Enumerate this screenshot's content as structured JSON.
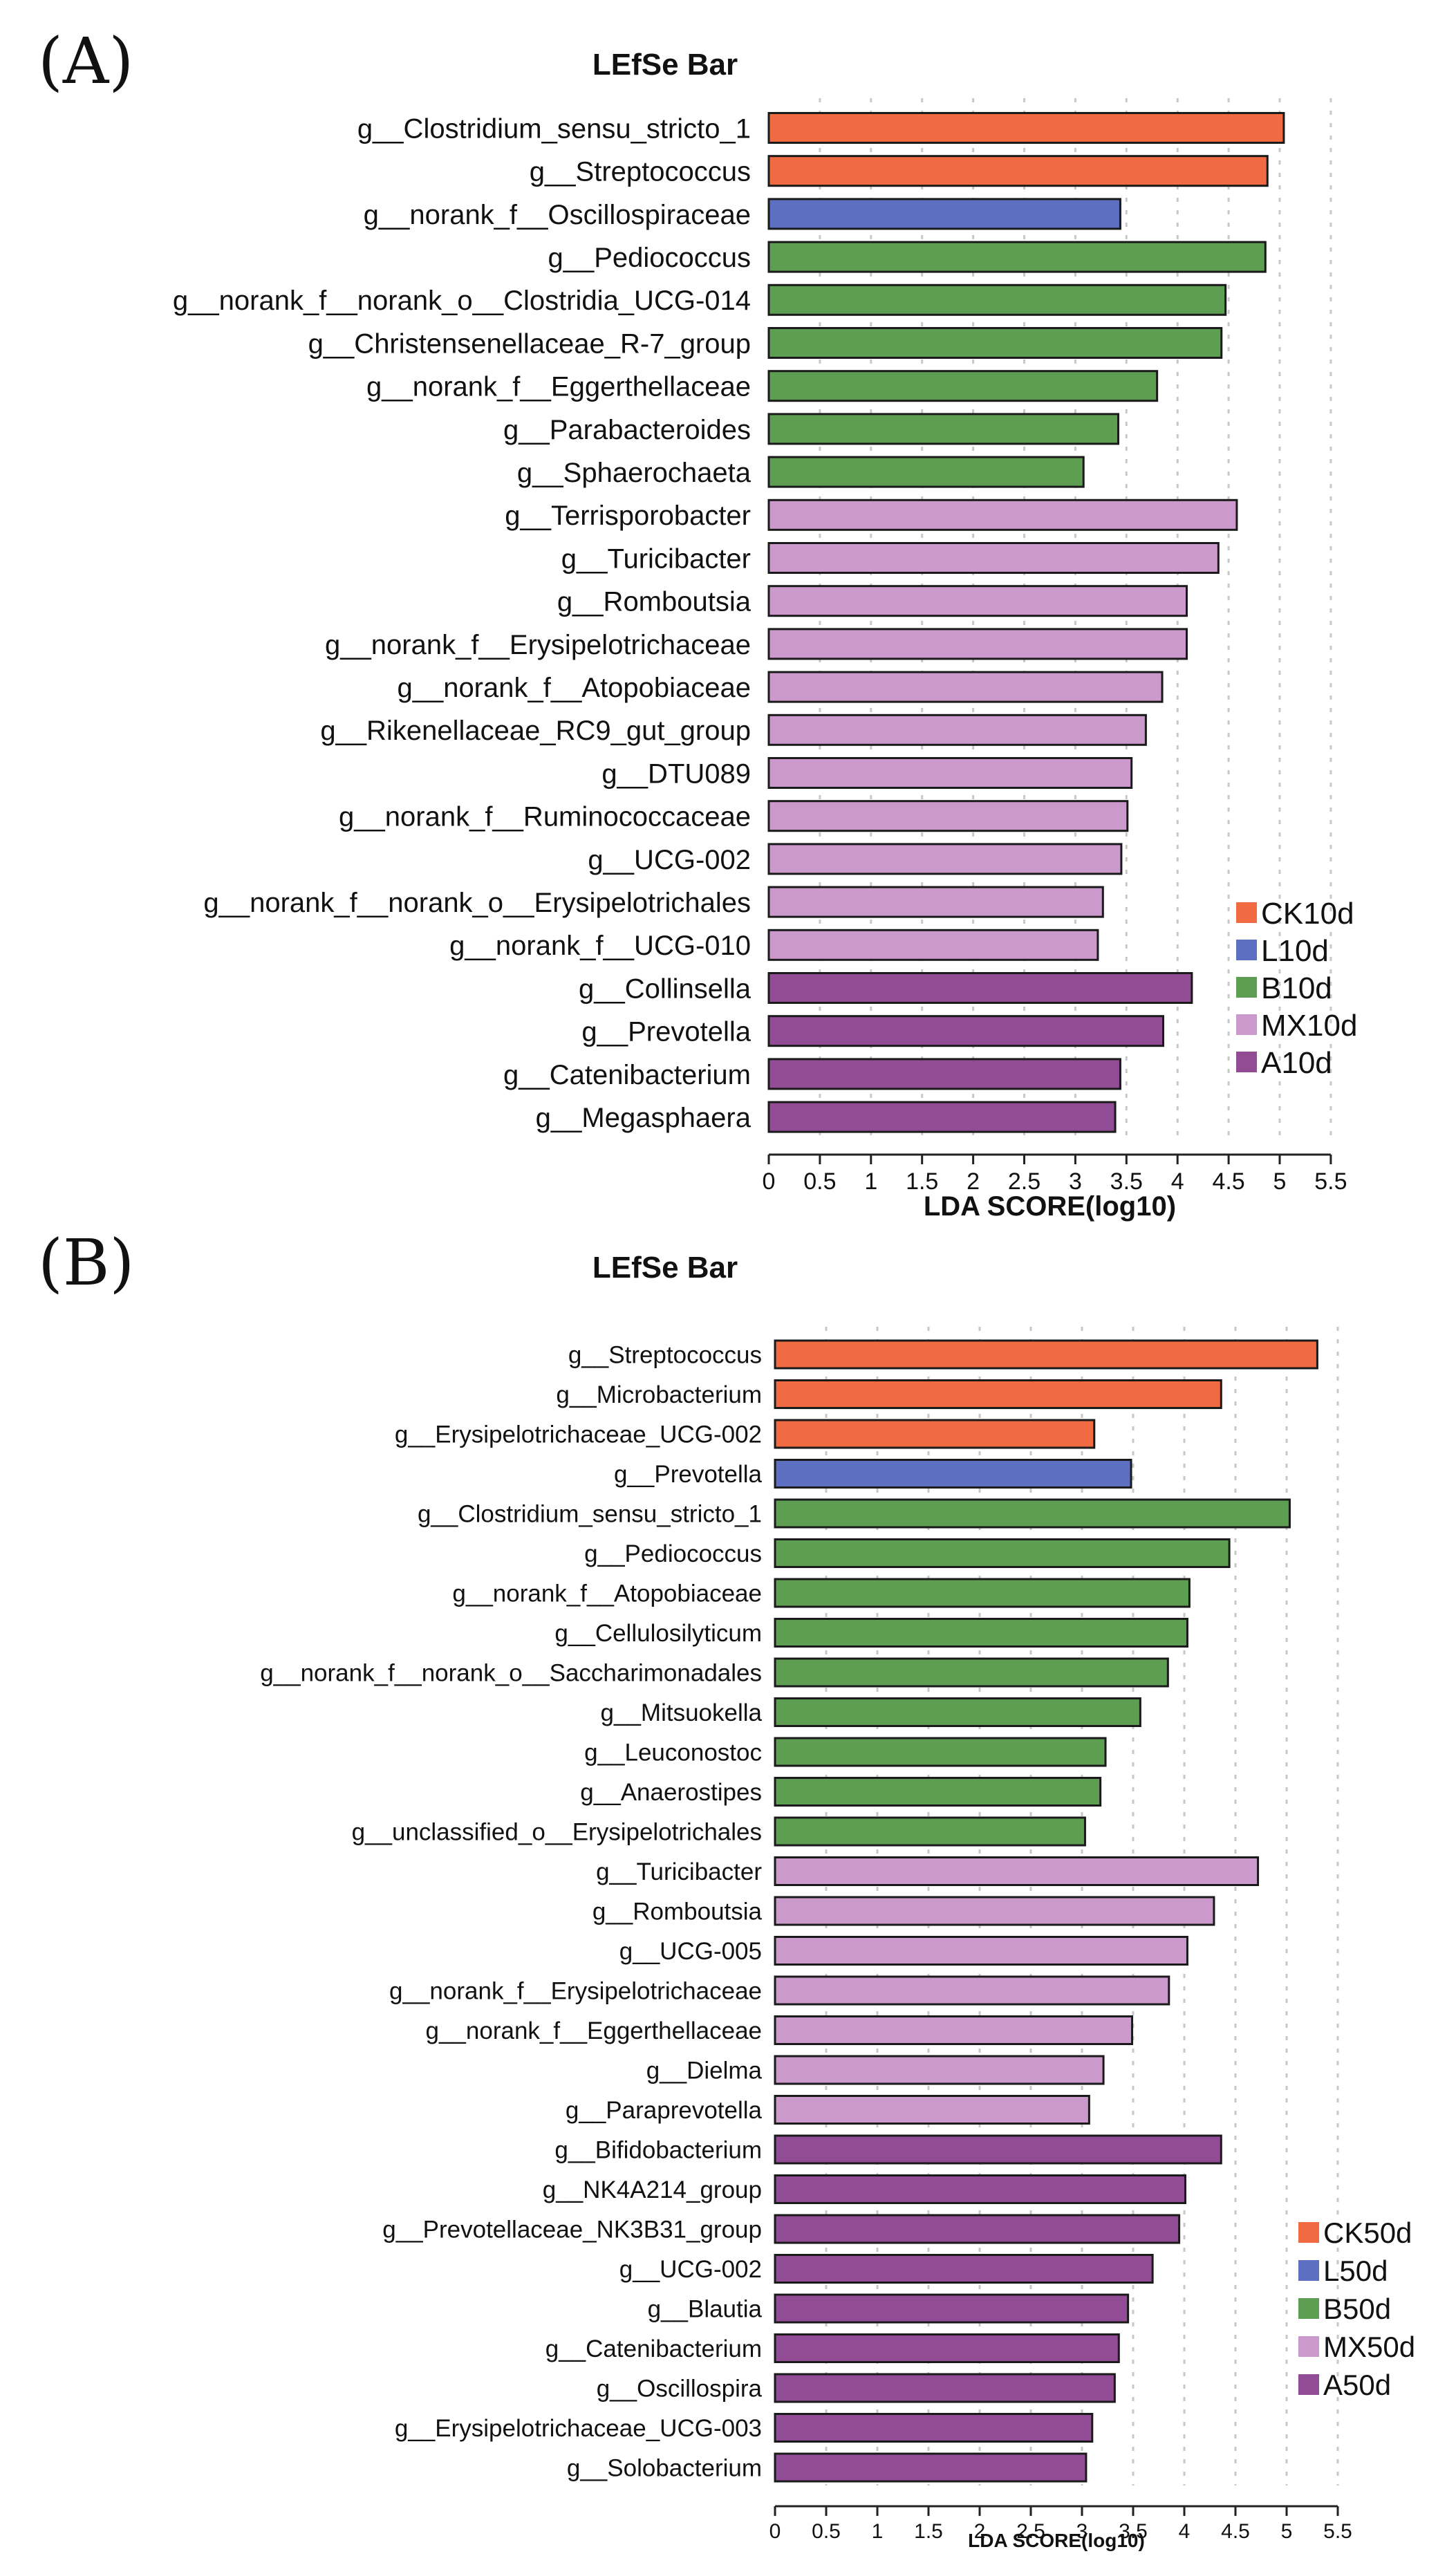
{
  "chart_data": [
    {
      "type": "bar",
      "orientation": "horizontal",
      "panel": "(A)",
      "title": "LEfSe Bar",
      "xlabel": "LDA SCORE(log10)",
      "ylabel": "",
      "xlim": [
        0,
        5.5
      ],
      "xticks": [
        "0",
        "0.5",
        "1",
        "1.5",
        "2",
        "2.5",
        "3",
        "3.5",
        "4",
        "4.5",
        "5",
        "5.5"
      ],
      "grid": "vertical dotted",
      "legend_position": "bottom-right",
      "legend": [
        {
          "name": "CK10d",
          "color": "#f06a42"
        },
        {
          "name": "L10d",
          "color": "#5c6fc0"
        },
        {
          "name": "B10d",
          "color": "#5e9e52"
        },
        {
          "name": "MX10d",
          "color": "#cc99cc"
        },
        {
          "name": "A10d",
          "color": "#924c96"
        }
      ],
      "categories": [
        "g__Clostridium_sensu_stricto_1",
        "g__Streptococcus",
        "g__norank_f__Oscillospiraceae",
        "g__Pediococcus",
        "g__norank_f__norank_o__Clostridia_UCG-014",
        "g__Christensenellaceae_R-7_group",
        "g__norank_f__Eggerthellaceae",
        "g__Parabacteroides",
        "g__Sphaerochaeta",
        "g__Terrisporobacter",
        "g__Turicibacter",
        "g__Romboutsia",
        "g__norank_f__Erysipelotrichaceae",
        "g__norank_f__Atopobiaceae",
        "g__Rikenellaceae_RC9_gut_group",
        "g__DTU089",
        "g__norank_f__Ruminococcaceae",
        "g__UCG-002",
        "g__norank_f__norank_o__Erysipelotrichales",
        "g__norank_f__UCG-010",
        "g__Collinsella",
        "g__Prevotella",
        "g__Catenibacterium",
        "g__Megasphaera"
      ],
      "values": [
        5.04,
        4.88,
        3.44,
        4.86,
        4.47,
        4.43,
        3.8,
        3.42,
        3.08,
        4.58,
        4.4,
        4.09,
        4.09,
        3.85,
        3.69,
        3.55,
        3.51,
        3.45,
        3.27,
        3.22,
        4.14,
        3.86,
        3.44,
        3.39
      ],
      "groups": [
        "CK10d",
        "CK10d",
        "L10d",
        "B10d",
        "B10d",
        "B10d",
        "B10d",
        "B10d",
        "B10d",
        "MX10d",
        "MX10d",
        "MX10d",
        "MX10d",
        "MX10d",
        "MX10d",
        "MX10d",
        "MX10d",
        "MX10d",
        "MX10d",
        "MX10d",
        "A10d",
        "A10d",
        "A10d",
        "A10d"
      ]
    },
    {
      "type": "bar",
      "orientation": "horizontal",
      "panel": "(B)",
      "title": "LEfSe Bar",
      "xlabel": "LDA SCORE(log10)",
      "ylabel": "",
      "xlim": [
        0,
        5.5
      ],
      "xticks": [
        "0",
        "0.5",
        "1",
        "1.5",
        "2",
        "2.5",
        "3",
        "3.5",
        "4",
        "4.5",
        "5",
        "5.5"
      ],
      "grid": "vertical dotted",
      "legend_position": "bottom-right",
      "legend": [
        {
          "name": "CK50d",
          "color": "#f06a42"
        },
        {
          "name": "L50d",
          "color": "#5c6fc0"
        },
        {
          "name": "B50d",
          "color": "#5e9e52"
        },
        {
          "name": "MX50d",
          "color": "#cc99cc"
        },
        {
          "name": "A50d",
          "color": "#924c96"
        }
      ],
      "categories": [
        "g__Streptococcus",
        "g__Microbacterium",
        "g__Erysipelotrichaceae_UCG-002",
        "g__Prevotella",
        "g__Clostridium_sensu_stricto_1",
        "g__Pediococcus",
        "g__norank_f__Atopobiaceae",
        "g__Cellulosilyticum",
        "g__norank_f__norank_o__Saccharimonadales",
        "g__Mitsuokella",
        "g__Leuconostoc",
        "g__Anaerostipes",
        "g__unclassified_o__Erysipelotrichales",
        "g__Turicibacter",
        "g__Romboutsia",
        "g__UCG-005",
        "g__norank_f__Erysipelotrichaceae",
        "g__norank_f__Eggerthellaceae",
        "g__Dielma",
        "g__Paraprevotella",
        "g__Bifidobacterium",
        "g__NK4A214_group",
        "g__Prevotellaceae_NK3B31_group",
        "g__UCG-002",
        "g__Blautia",
        "g__Catenibacterium",
        "g__Oscillospira",
        "g__Erysipelotrichaceae_UCG-003",
        "g__Solobacterium"
      ],
      "values": [
        5.3,
        4.36,
        3.12,
        3.48,
        5.03,
        4.44,
        4.05,
        4.03,
        3.84,
        3.57,
        3.23,
        3.18,
        3.03,
        4.72,
        4.29,
        4.03,
        3.85,
        3.49,
        3.21,
        3.07,
        4.36,
        4.01,
        3.95,
        3.69,
        3.45,
        3.36,
        3.32,
        3.1,
        3.04
      ],
      "groups": [
        "CK50d",
        "CK50d",
        "CK50d",
        "L50d",
        "B50d",
        "B50d",
        "B50d",
        "B50d",
        "B50d",
        "B50d",
        "B50d",
        "B50d",
        "B50d",
        "MX50d",
        "MX50d",
        "MX50d",
        "MX50d",
        "MX50d",
        "MX50d",
        "MX50d",
        "A50d",
        "A50d",
        "A50d",
        "A50d",
        "A50d",
        "A50d",
        "A50d",
        "A50d",
        "A50d"
      ]
    }
  ]
}
